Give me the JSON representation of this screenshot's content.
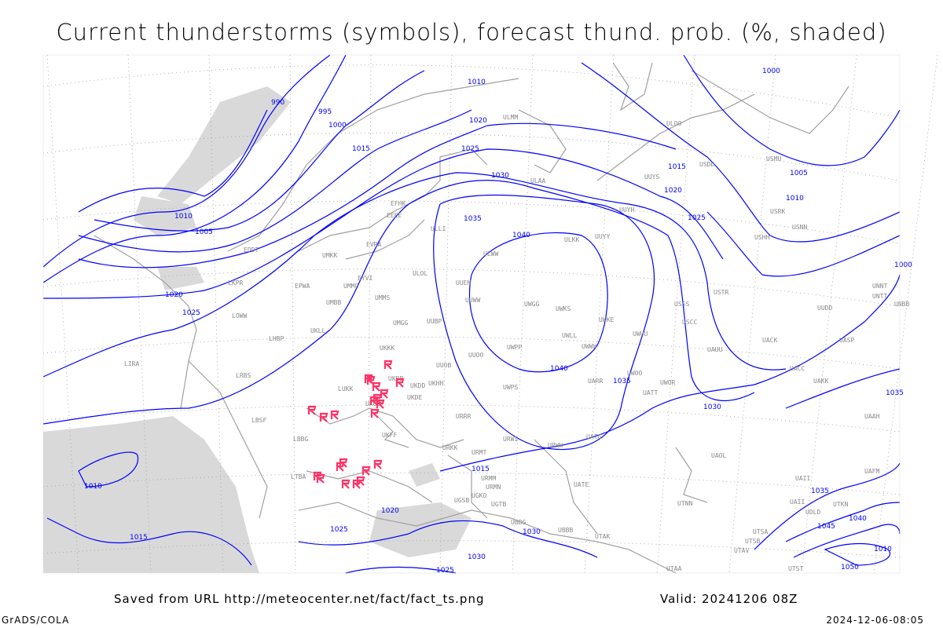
{
  "title": "Current thunderstorms (symbols), forecast thund. prob. (%, shaded)",
  "footer": {
    "saved_from": "Saved from URL http://meteocenter.net/fact/fact_ts.png",
    "valid": "Valid: 20241206 08Z",
    "software": "GrADS/COLA",
    "generated": "2024-12-06-08:05"
  },
  "colors": {
    "isobar": "#0000ff",
    "coast": "#a0a0a0",
    "thunderstorm_symbol": "#ff3366",
    "probability_shading": "#d8d8d8"
  },
  "isobar_labels": [
    "990",
    "995",
    "1000",
    "1005",
    "1010",
    "1010",
    "1015",
    "1015",
    "1020",
    "1020",
    "1025",
    "1025",
    "1030",
    "1035",
    "1040",
    "1040",
    "1035",
    "1030",
    "1025",
    "1020",
    "1015",
    "1010",
    "1005",
    "1000",
    "1010",
    "1015",
    "1020",
    "1025",
    "1030",
    "1025",
    "1030",
    "1035",
    "1040",
    "1045",
    "1050",
    "1035",
    "1010",
    "1000"
  ],
  "station_labels": [
    "ULMM",
    "ULOO",
    "UUYS",
    "USDD",
    "UUYH",
    "ULAA",
    "USMU",
    "USRK",
    "USNN",
    "USHH",
    "ULKK",
    "UUYY",
    "ULWW",
    "UUEM",
    "UUWW",
    "UWGG",
    "UWKS",
    "UWKE",
    "UWUU",
    "USCC",
    "USSS",
    "USTR",
    "UWLL",
    "UWWW",
    "UWPP",
    "UUOO",
    "UUOB",
    "UKKK",
    "UKHH",
    "UKDD",
    "UKDE",
    "UKOO",
    "UKFF",
    "URRR",
    "URKK",
    "URMT",
    "URMM",
    "URMN",
    "UGSB",
    "UGKO",
    "UGTB",
    "UBBB",
    "UTAK",
    "UTAA",
    "UATE",
    "UATG",
    "UARR",
    "UWOO",
    "UWOR",
    "UATT",
    "UASP",
    "UACC",
    "UAKK",
    "UACK",
    "UAUU",
    "UAII",
    "UTNN",
    "UTSA",
    "UTSB",
    "UTAV",
    "UTST",
    "UBBG",
    "LUKK",
    "UMMS",
    "UMGG",
    "UUBP",
    "EYVI",
    "UMMG",
    "EPWA",
    "UMBB",
    "LKPR",
    "LOWW",
    "LHBP",
    "UKLL",
    "LRBS",
    "LBSF",
    "LBBG",
    "LTBA",
    "LIRA",
    "EDDT",
    "EFHK",
    "EEEE",
    "EVRA",
    "ULLI",
    "UKBB",
    "ULOL",
    "UMKK",
    "UNBB",
    "UNNT",
    "UNTT",
    "URWI",
    "URWW",
    "UWPS",
    "UUDD",
    "UAOL",
    "UAAH",
    "UAFM",
    "UDLD",
    "UTKN",
    "UAII"
  ],
  "thunderstorm_count": 20
}
